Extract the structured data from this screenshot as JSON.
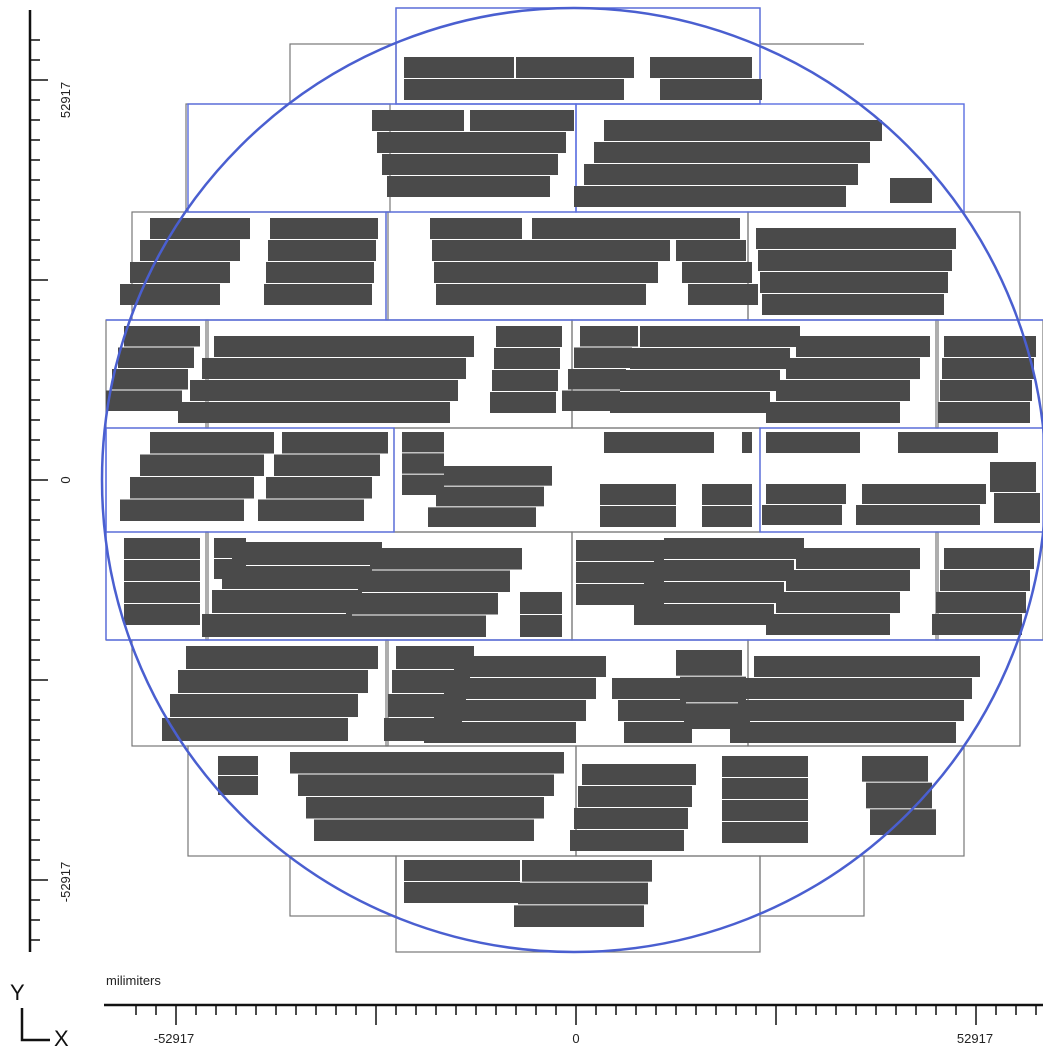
{
  "units_label": "milimiters",
  "axis_y_label": "Y",
  "axis_x_label": "X",
  "x_ticks": [
    "-52917",
    "0",
    "52917"
  ],
  "y_ticks": [
    "52917",
    "0",
    "-52917"
  ],
  "colors": {
    "wafer_outline": "#4a5fd0",
    "field_blue": "#5a6ee0",
    "field_gray": "#777777",
    "die": "#4a4a4a",
    "axis": "#111111"
  }
}
